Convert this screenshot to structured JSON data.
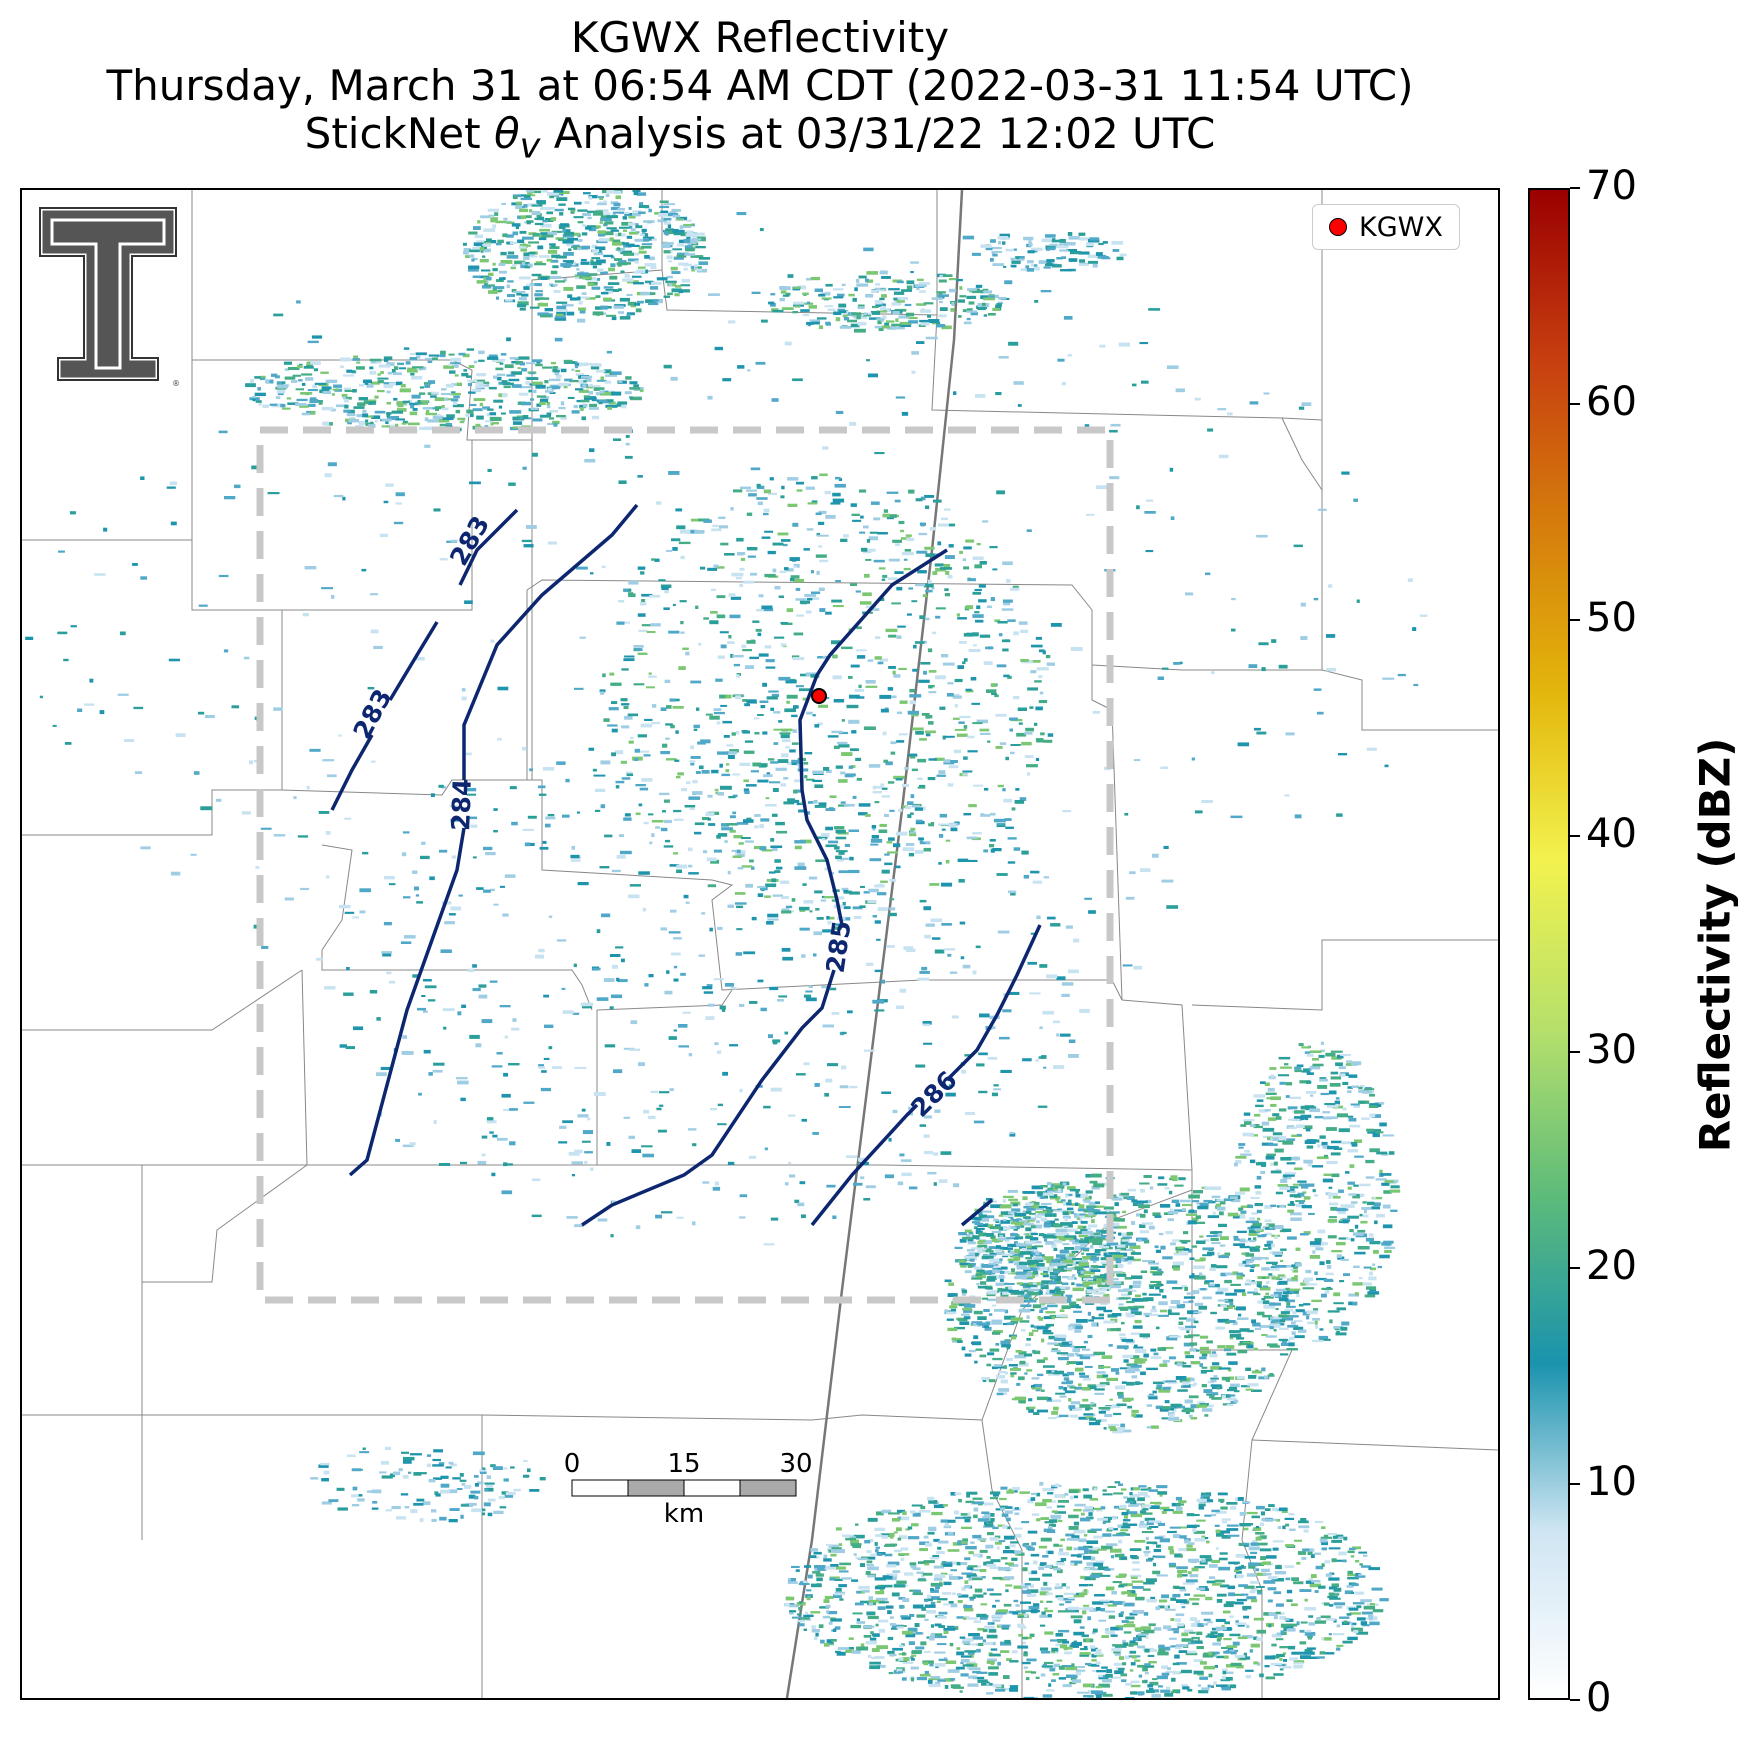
{
  "title": {
    "line1": "KGWX Reflectivity",
    "line2": "Thursday, March 31 at 06:54 AM CDT (2022-03-31 11:54 UTC)",
    "line3_prefix": "StickNet ",
    "line3_symbol": "θ",
    "line3_subscript": "v",
    "line3_suffix": " Analysis at 03/31/22 12:02 UTC"
  },
  "legend": {
    "label": "KGWX"
  },
  "colorbar": {
    "label": "Reflectivity (dBZ)",
    "range": [
      0,
      70
    ],
    "ticks": [
      "0",
      "10",
      "20",
      "30",
      "40",
      "50",
      "60",
      "70"
    ],
    "colors": [
      "#ffffff",
      "#cfe5f3",
      "#1a93ad",
      "#5dbb7a",
      "#b6e06b",
      "#f2f24e",
      "#e3b60c",
      "#d57d0c",
      "#c73e10",
      "#9a0000"
    ]
  },
  "contours": {
    "color": "#0d2670",
    "labels": [
      "283",
      "283",
      "284",
      "285",
      "286"
    ]
  },
  "scale_bar": {
    "labels": [
      "0",
      "15",
      "30"
    ],
    "unit": "km"
  },
  "logo": {
    "text": "TT"
  }
}
